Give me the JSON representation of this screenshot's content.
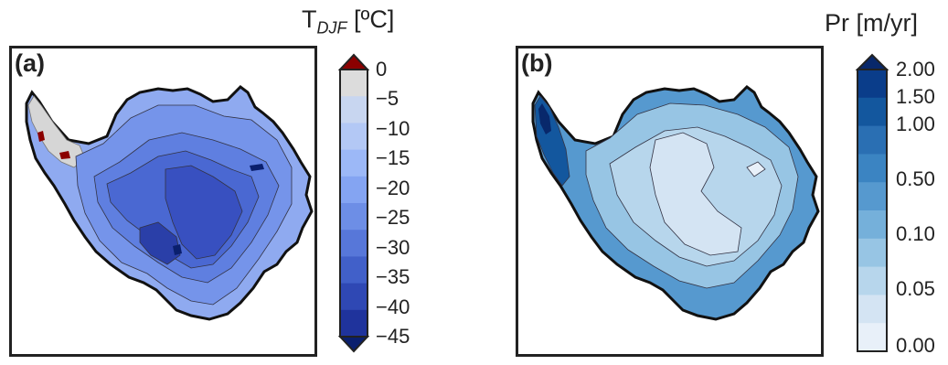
{
  "panels": [
    {
      "id": "a",
      "label": "(a)",
      "colorbar": {
        "title_main": "T",
        "title_sub": "DJF",
        "title_unit": " [ºC]",
        "ticks": [
          "0",
          "−5",
          "−10",
          "−15",
          "−20",
          "−25",
          "−30",
          "−35",
          "−40",
          "−45"
        ],
        "colors": [
          "#dcdcdc",
          "#c8d6f0",
          "#b3c8f5",
          "#9cb8f7",
          "#84a4f2",
          "#6d8ee6",
          "#5777d9",
          "#4160c9",
          "#2f48b4",
          "#1f339c"
        ],
        "extend_top_color": "#8b0000",
        "extend_bottom_color": "#0a1f6e"
      }
    },
    {
      "id": "b",
      "label": "(b)",
      "colorbar": {
        "title": "Pr [m/yr]",
        "ticks": [
          "2.00",
          "1.50",
          "1.00",
          "0.50",
          "0.10",
          "0.05",
          "0.00"
        ],
        "colors": [
          "#0a3d8a",
          "#13579e",
          "#2a6fb3",
          "#3b84c2",
          "#5699cf",
          "#75b0da",
          "#97c5e4",
          "#b7d6ec",
          "#d4e4f3",
          "#e8f0f9"
        ],
        "extend_top_color": "#08286b"
      }
    }
  ]
}
